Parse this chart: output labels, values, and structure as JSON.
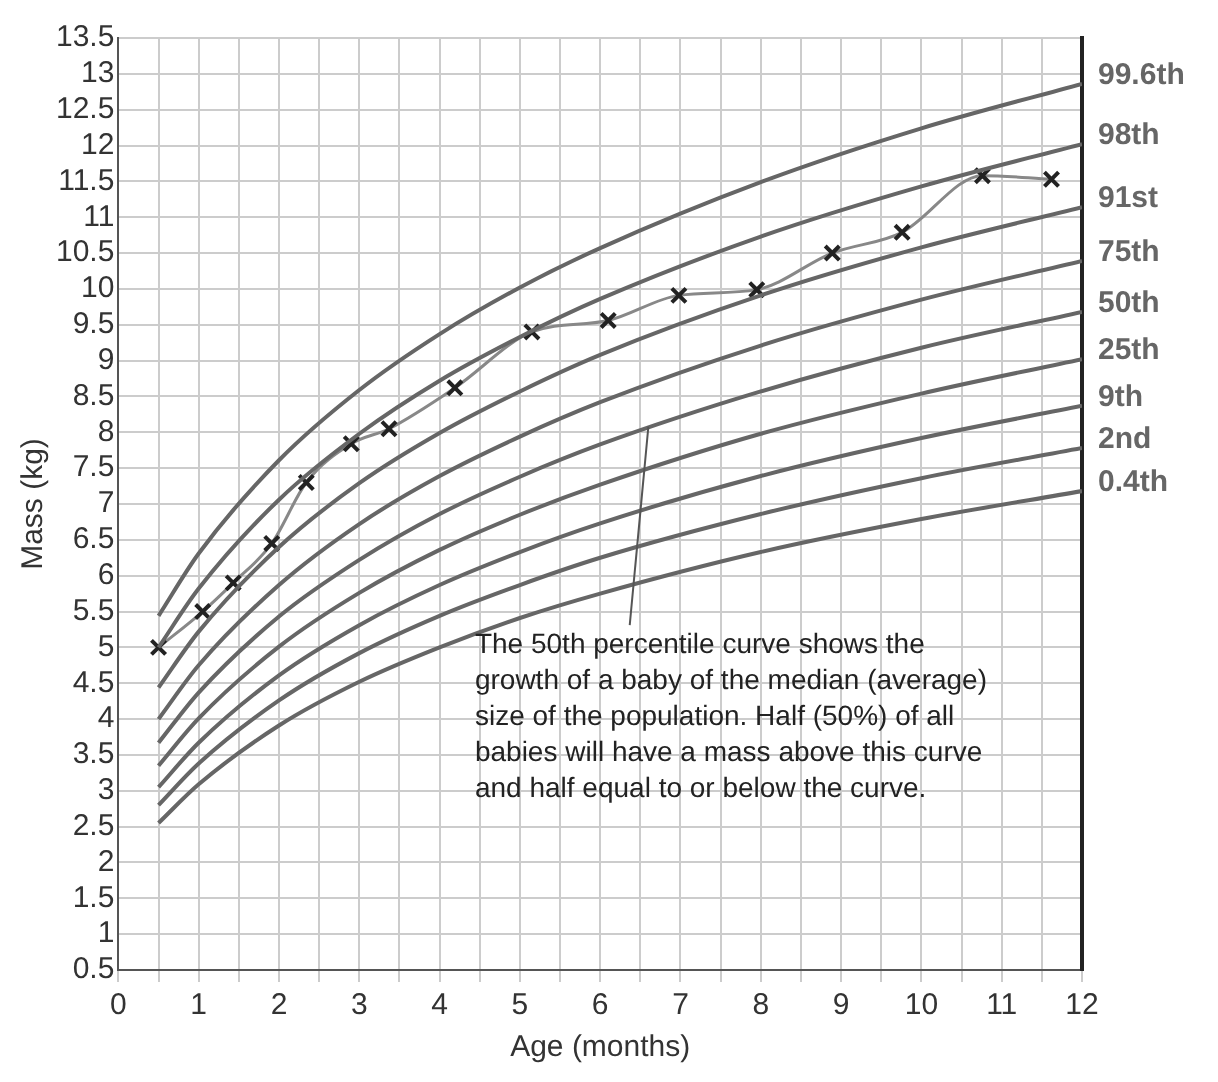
{
  "chart_data": {
    "type": "line",
    "xlabel": "Age (months)",
    "ylabel": "Mass (kg)",
    "xlim": [
      0,
      12
    ],
    "ylim": [
      0.5,
      13.5
    ],
    "xticks": [
      0,
      {
        "value": 0.5,
        "label": null
      },
      1,
      {
        "value": 1.5,
        "label": null
      },
      2,
      {
        "value": 2.5,
        "label": null
      },
      3,
      {
        "value": 3.5,
        "label": null
      },
      4,
      {
        "value": 4.5,
        "label": null
      },
      5,
      {
        "value": 5.5,
        "label": null
      },
      6,
      {
        "value": 6.5,
        "label": null
      },
      7,
      {
        "value": 7.5,
        "label": null
      },
      8,
      {
        "value": 8.5,
        "label": null
      },
      9,
      {
        "value": 9.5,
        "label": null
      },
      10,
      {
        "value": 10.5,
        "label": null
      },
      11,
      {
        "value": 11.5,
        "label": null
      },
      12
    ],
    "yticks": [
      0.5,
      1,
      1.5,
      2,
      2.5,
      3,
      3.5,
      4,
      4.5,
      5,
      5.5,
      6,
      6.5,
      7,
      7.5,
      8,
      8.5,
      9,
      9.5,
      10,
      10.5,
      11,
      11.5,
      12,
      12.5,
      13,
      13.5
    ],
    "grid": true,
    "legend": false,
    "marker": "none",
    "line_style": "solid",
    "x": [
      0.5,
      1,
      2,
      3,
      4,
      5,
      6,
      8,
      10,
      12
    ],
    "series": [
      {
        "name": "99.6th",
        "color": "#666666",
        "values": [
          5.44,
          6.31,
          7.61,
          8.59,
          9.37,
          10.02,
          10.57,
          11.49,
          12.24,
          12.86
        ]
      },
      {
        "name": "98th",
        "color": "#666666",
        "values": [
          5.0,
          5.82,
          7.06,
          7.98,
          8.72,
          9.33,
          9.86,
          10.73,
          11.43,
          12.02
        ]
      },
      {
        "name": "91st",
        "color": "#666666",
        "values": [
          4.44,
          5.22,
          6.4,
          7.29,
          7.99,
          8.57,
          9.08,
          9.91,
          10.58,
          11.14
        ]
      },
      {
        "name": "75th",
        "color": "#666666",
        "values": [
          4.0,
          4.75,
          5.87,
          6.72,
          7.39,
          7.94,
          8.42,
          9.21,
          9.85,
          10.39
        ]
      },
      {
        "name": "50th",
        "color": "#666666",
        "values": [
          3.67,
          4.37,
          5.43,
          6.22,
          6.86,
          7.38,
          7.83,
          8.57,
          9.18,
          9.68
        ]
      },
      {
        "name": "25th",
        "color": "#666666",
        "values": [
          3.35,
          4.01,
          5.01,
          5.76,
          6.36,
          6.85,
          7.27,
          7.98,
          8.54,
          9.02
        ]
      },
      {
        "name": "9th",
        "color": "#666666",
        "values": [
          3.05,
          3.67,
          4.61,
          5.31,
          5.87,
          6.33,
          6.73,
          7.39,
          7.92,
          8.37
        ]
      },
      {
        "name": "2nd",
        "color": "#666666",
        "values": [
          2.8,
          3.38,
          4.26,
          4.92,
          5.44,
          5.87,
          6.25,
          6.86,
          7.36,
          7.78
        ]
      },
      {
        "name": "0.4th",
        "color": "#666666",
        "values": [
          2.55,
          3.09,
          3.91,
          4.52,
          5.0,
          5.41,
          5.75,
          6.33,
          6.79,
          7.18
        ]
      },
      {
        "color": "#222222",
        "marker": "cross",
        "x": [
          0.5,
          1.05,
          1.43,
          1.91,
          2.34,
          2.9,
          3.37,
          4.19,
          5.15,
          6.1,
          6.98,
          7.95,
          8.89,
          9.76,
          10.76,
          11.62
        ],
        "values": [
          5.0,
          5.5,
          5.9,
          6.45,
          7.3,
          7.84,
          8.05,
          8.62,
          9.4,
          9.56,
          9.91,
          9.99,
          10.5,
          10.79,
          11.58,
          11.53
        ]
      }
    ],
    "annotations": [
      {
        "text": "The 50th percentile curve shows the growth of a baby of the median (average) size of the population. Half (50%) of all babies will have a mass above this curve and half equal to or below the curve.",
        "x": 6.6,
        "y": 8.08
      }
    ]
  }
}
